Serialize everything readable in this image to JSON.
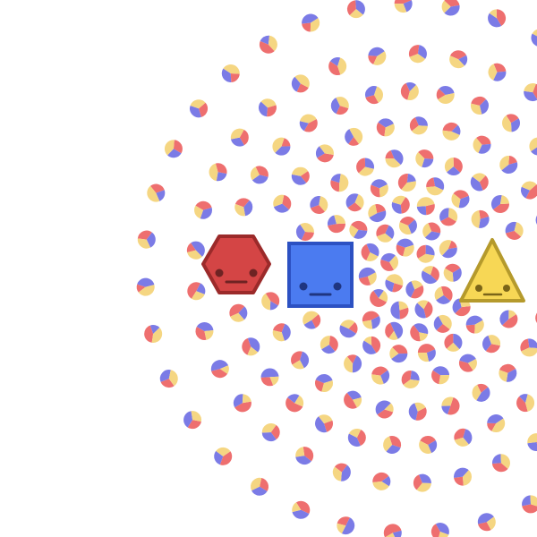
{
  "scene": {
    "background": "#ffffff",
    "characters": [
      {
        "name": "red-hexagon",
        "shape": "hexagon",
        "fill": "#d44545",
        "stroke": "#9b2a2a",
        "expression": "neutral"
      },
      {
        "name": "blue-square",
        "shape": "square",
        "fill": "#4b7bf0",
        "stroke": "#2c51c2",
        "expression": "neutral"
      },
      {
        "name": "yellow-triangle",
        "shape": "triangle",
        "fill": "#f7d755",
        "stroke": "#b59a2c",
        "expression": "neutral"
      }
    ],
    "dot_colors": {
      "red": "#ee6f6f",
      "blue": "#7b7be6",
      "yellow": "#f5d682"
    }
  }
}
